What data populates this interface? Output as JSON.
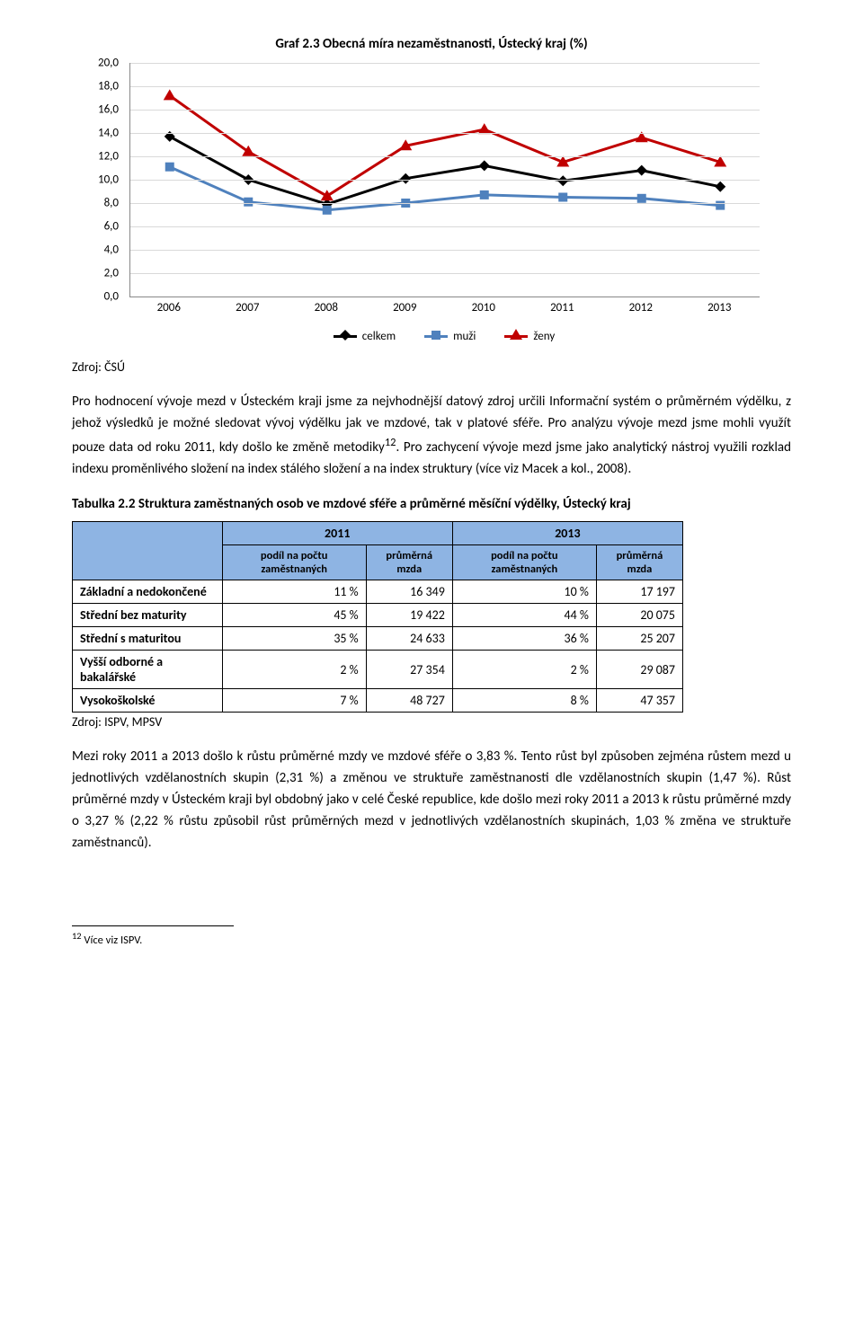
{
  "chart": {
    "type": "line",
    "title": "Graf 2.3 Obecná míra nezaměstnanosti, Ústecký kraj (%)",
    "x_categories": [
      "2006",
      "2007",
      "2008",
      "2009",
      "2010",
      "2011",
      "2012",
      "2013"
    ],
    "ylim": [
      0,
      20
    ],
    "ytick_step": 2,
    "y_ticks": [
      "0,0",
      "2,0",
      "4,0",
      "6,0",
      "8,0",
      "10,0",
      "12,0",
      "14,0",
      "16,0",
      "18,0",
      "20,0"
    ],
    "grid_color": "#d9d9d9",
    "background_color": "#ffffff",
    "series": [
      {
        "name": "celkem",
        "color": "#000000",
        "marker": "diamond",
        "line_width": 3,
        "values": [
          13.7,
          10.0,
          7.9,
          10.1,
          11.2,
          9.9,
          10.8,
          9.4
        ]
      },
      {
        "name": "muži",
        "color": "#4f81bd",
        "marker": "square",
        "line_width": 3,
        "values": [
          11.1,
          8.1,
          7.4,
          8.0,
          8.7,
          8.5,
          8.4,
          7.8
        ]
      },
      {
        "name": "ženy",
        "color": "#c00000",
        "marker": "triangle",
        "line_width": 3,
        "values": [
          17.2,
          12.4,
          8.6,
          12.9,
          14.3,
          11.5,
          13.6,
          11.5
        ]
      }
    ],
    "legend_labels": [
      "celkem",
      "muži",
      "ženy"
    ]
  },
  "source1": "Zdroj: ČSÚ",
  "para1": "Pro hodnocení vývoje mezd v Ústeckém kraji jsme za nejvhodnější datový zdroj určili Informační systém o průměrném výdělku, z jehož výsledků je možné sledovat vývoj výdělku jak ve mzdové, tak v platové sféře. Pro analýzu vývoje mezd jsme mohli využít pouze data od roku 2011, kdy došlo ke změně metodiky",
  "para1_sup": "12",
  "para1_tail": ". Pro zachycení vývoje mezd jsme jako analytický nástroj využili rozklad indexu proměnlivého složení na index stálého složení a na index struktury (více viz Macek a kol., 2008).",
  "table": {
    "title": "Tabulka 2.2 Struktura zaměstnaných osob ve mzdové sféře a průměrné měsíční výdělky, Ústecký kraj",
    "header_bg": "#8eb4e3",
    "year_cols": [
      "2011",
      "2013"
    ],
    "sub_headers": [
      "podíl na počtu zaměstnaných",
      "průměrná mzda",
      "podíl na počtu zaměstnaných",
      "průměrná mzda"
    ],
    "rows": [
      {
        "label": "Základní a nedokončené",
        "vals": [
          "11 %",
          "16 349",
          "10 %",
          "17 197"
        ]
      },
      {
        "label": "Střední bez maturity",
        "vals": [
          "45 %",
          "19 422",
          "44 %",
          "20 075"
        ]
      },
      {
        "label": "Střední s maturitou",
        "vals": [
          "35 %",
          "24 633",
          "36 %",
          "25 207"
        ]
      },
      {
        "label": "Vyšší odborné a bakalářské",
        "vals": [
          "2 %",
          "27 354",
          "2 %",
          "29 087"
        ]
      },
      {
        "label": "Vysokoškolské",
        "vals": [
          "7 %",
          "48 727",
          "8 %",
          "47 357"
        ]
      }
    ]
  },
  "source2": "Zdroj: ISPV, MPSV",
  "para2": "Mezi roky 2011 a 2013 došlo k růstu průměrné mzdy ve mzdové sféře o 3,83 %. Tento růst byl způsoben zejména růstem mezd u jednotlivých vzdělanostních skupin (2,31 %) a změnou ve struktuře zaměstnanosti dle vzdělanostních skupin (1,47 %). Růst průměrné mzdy v Ústeckém kraji byl obdobný jako v celé České republice, kde došlo mezi roky 2011 a 2013 k růstu průměrné mzdy o 3,27 % (2,22 % růstu způsobil růst průměrných mezd v jednotlivých vzdělanostních skupinách, 1,03 % změna ve struktuře zaměstnanců).",
  "footnote_num": "12",
  "footnote_text": " Více viz ISPV."
}
